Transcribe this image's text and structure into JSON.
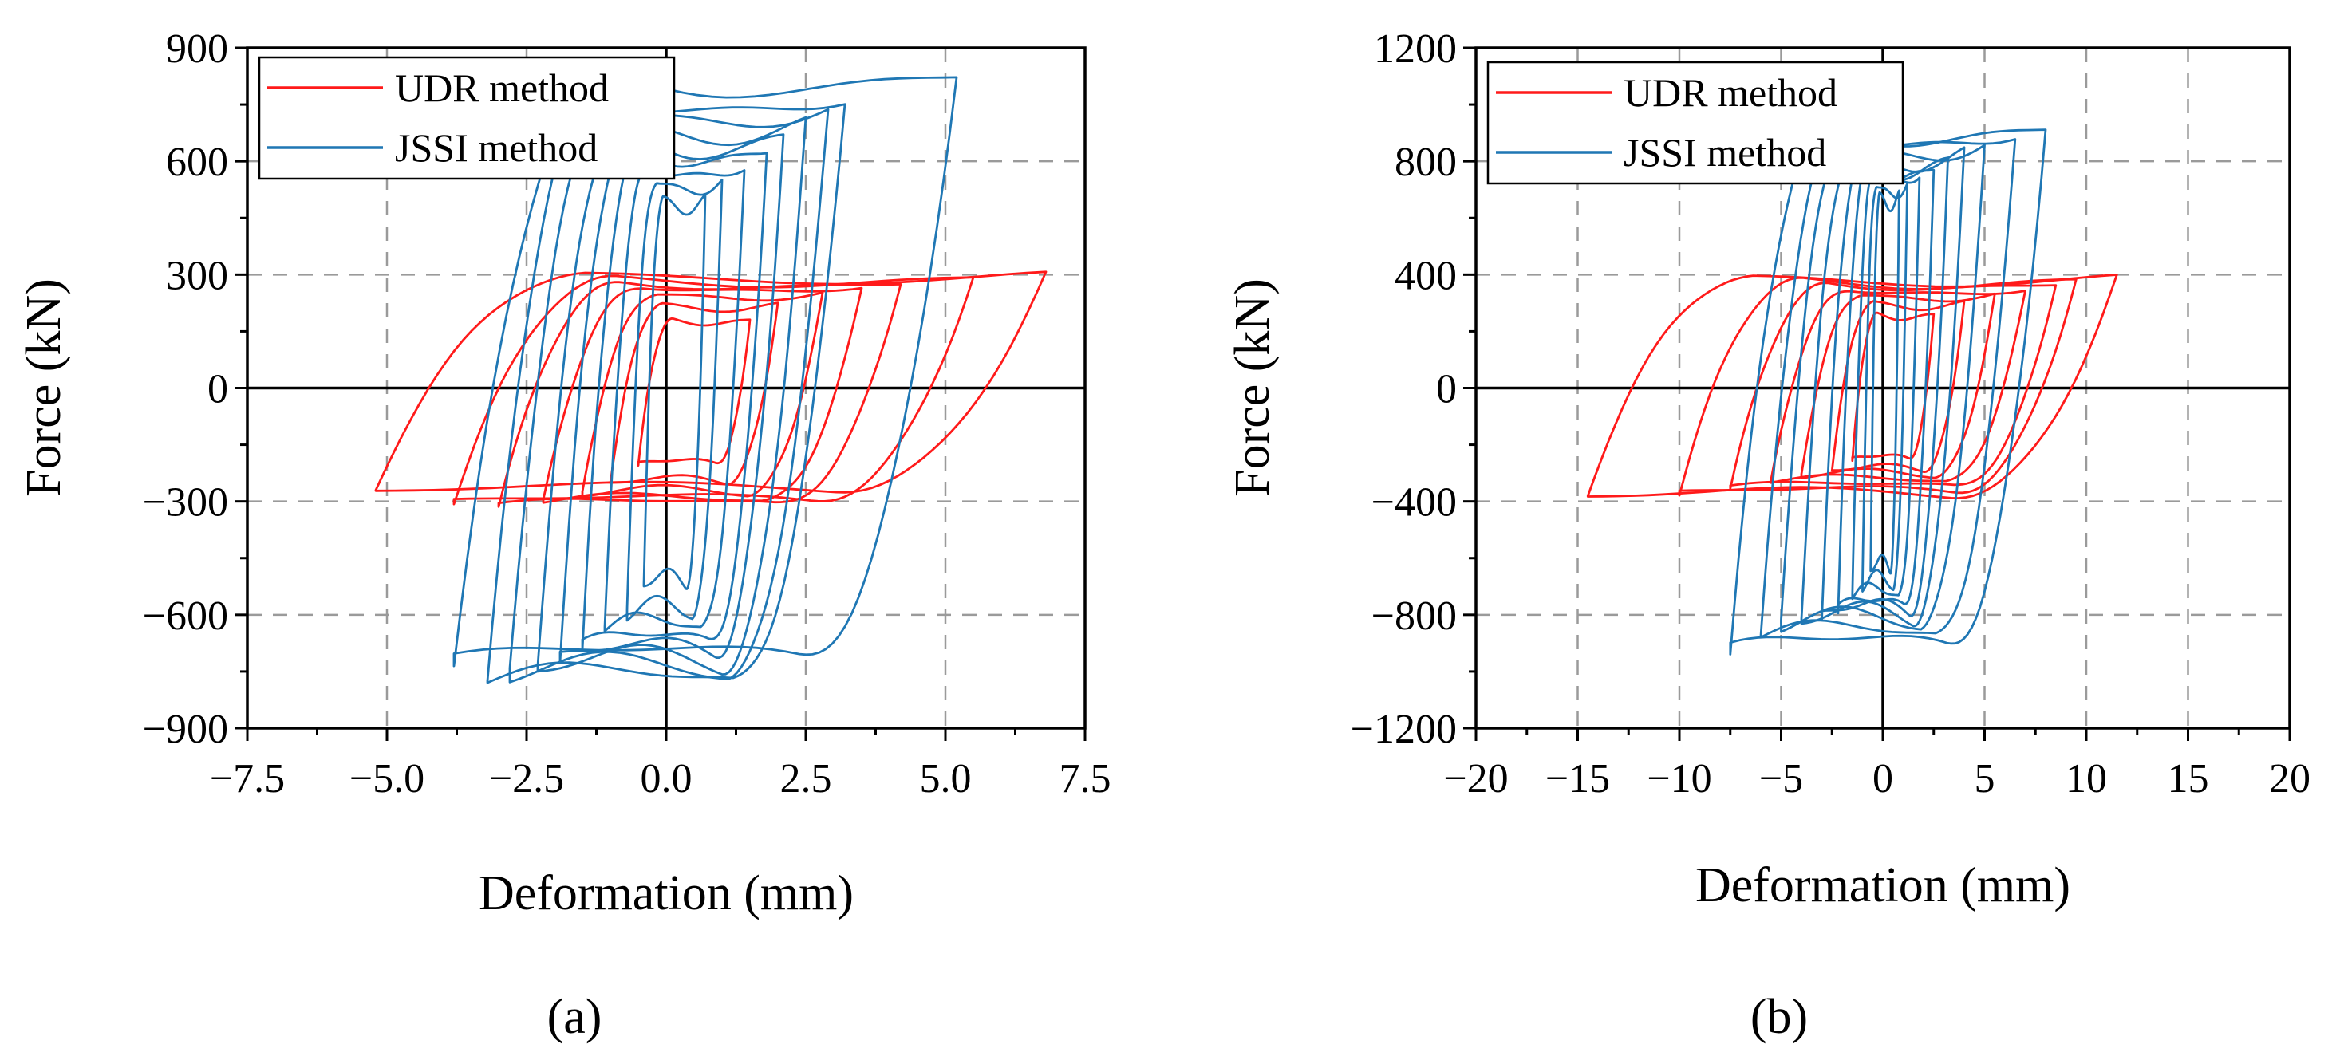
{
  "colors": {
    "udr": "#ff1a1a",
    "jssi": "#1f77b4"
  },
  "chart_data": [
    {
      "type": "line",
      "panel": "(a)",
      "xlabel": "Deformation (mm)",
      "ylabel": "Force (kN)",
      "xlim": [
        -7.5,
        7.5
      ],
      "ylim": [
        -900,
        900
      ],
      "xticks": [
        -7.5,
        -5.0,
        -2.5,
        0.0,
        2.5,
        5.0,
        7.5
      ],
      "xtick_labels": [
        "−7.5",
        "−5.0",
        "−2.5",
        "0.0",
        "2.5",
        "5.0",
        "7.5"
      ],
      "yticks": [
        -900,
        -600,
        -300,
        0,
        300,
        600,
        900
      ],
      "ytick_labels": [
        "−900",
        "−600",
        "−300",
        "0",
        "300",
        "600",
        "900"
      ],
      "grid": true,
      "legend_position": "top-left",
      "series": [
        {
          "name": "UDR method",
          "color_key": "udr",
          "loops": [
            {
              "dmin": -5.2,
              "dmax": 6.8,
              "fmin": -270,
              "fmax": 300,
              "dc": 0.6
            },
            {
              "dmin": -3.8,
              "dmax": 5.5,
              "fmin": -300,
              "fmax": 290,
              "dc": 0.8
            },
            {
              "dmin": -3.0,
              "dmax": 4.2,
              "fmin": -310,
              "fmax": 280,
              "dc": 0.6
            },
            {
              "dmin": -2.2,
              "dmax": 3.5,
              "fmin": -300,
              "fmax": 270,
              "dc": 0.6
            },
            {
              "dmin": -1.5,
              "dmax": 2.8,
              "fmin": -280,
              "fmax": 250,
              "dc": 0.6
            },
            {
              "dmin": -1.0,
              "dmax": 2.0,
              "fmin": -250,
              "fmax": 220,
              "dc": 0.5
            },
            {
              "dmin": -0.5,
              "dmax": 1.5,
              "fmin": -200,
              "fmax": 180,
              "dc": 0.5
            }
          ]
        },
        {
          "name": "JSSI method",
          "color_key": "jssi",
          "loops": [
            {
              "dmin": -3.8,
              "dmax": 5.2,
              "fmin": -720,
              "fmax": 830,
              "dc": 0.7
            },
            {
              "dmin": -3.2,
              "dmax": 3.2,
              "fmin": -780,
              "fmax": 770,
              "dc": 0.0
            },
            {
              "dmin": -2.8,
              "dmax": 2.9,
              "fmin": -760,
              "fmax": 740,
              "dc": 0.0
            },
            {
              "dmin": -2.3,
              "dmax": 2.5,
              "fmin": -740,
              "fmax": 700,
              "dc": 0.1
            },
            {
              "dmin": -1.9,
              "dmax": 2.1,
              "fmin": -710,
              "fmax": 660,
              "dc": 0.1
            },
            {
              "dmin": -1.5,
              "dmax": 1.8,
              "fmin": -680,
              "fmax": 630,
              "dc": 0.15
            },
            {
              "dmin": -1.1,
              "dmax": 1.4,
              "fmin": -640,
              "fmax": 590,
              "dc": 0.15
            },
            {
              "dmin": -0.7,
              "dmax": 1.0,
              "fmin": -600,
              "fmax": 550,
              "dc": 0.15
            },
            {
              "dmin": -0.4,
              "dmax": 0.7,
              "fmin": -520,
              "fmax": 500,
              "dc": 0.15
            }
          ]
        }
      ]
    },
    {
      "type": "line",
      "panel": "(b)",
      "xlabel": "Deformation (mm)",
      "ylabel": "Force (kN)",
      "xlim": [
        -20,
        20
      ],
      "ylim": [
        -1200,
        1200
      ],
      "xticks": [
        -20,
        -15,
        -10,
        -5,
        0,
        5,
        10,
        15,
        20
      ],
      "xtick_labels": [
        "−20",
        "−15",
        "−10",
        "−5",
        "0",
        "5",
        "10",
        "15",
        "20"
      ],
      "yticks": [
        -1200,
        -800,
        -400,
        0,
        400,
        800,
        1200
      ],
      "ytick_labels": [
        "−1200",
        "−800",
        "−400",
        "0",
        "400",
        "800",
        "1200"
      ],
      "grid": true,
      "legend_position": "top-left",
      "series": [
        {
          "name": "UDR method",
          "color_key": "udr",
          "loops": [
            {
              "dmin": -14.5,
              "dmax": 11.5,
              "fmin": -380,
              "fmax": 390,
              "dc": -1.5
            },
            {
              "dmin": -10.0,
              "dmax": 9.5,
              "fmin": -370,
              "fmax": 380,
              "dc": -0.3
            },
            {
              "dmin": -7.5,
              "dmax": 8.5,
              "fmin": -350,
              "fmax": 370,
              "dc": 0.5
            },
            {
              "dmin": -5.5,
              "dmax": 7.0,
              "fmin": -330,
              "fmax": 350,
              "dc": 0.7
            },
            {
              "dmin": -4.0,
              "dmax": 5.5,
              "fmin": -310,
              "fmax": 330,
              "dc": 0.8
            },
            {
              "dmin": -2.5,
              "dmax": 4.0,
              "fmin": -290,
              "fmax": 300,
              "dc": 0.8
            },
            {
              "dmin": -1.5,
              "dmax": 2.5,
              "fmin": -250,
              "fmax": 260,
              "dc": 0.5
            }
          ]
        },
        {
          "name": "JSSI method",
          "color_key": "jssi",
          "loops": [
            {
              "dmin": -7.5,
              "dmax": 8.0,
              "fmin": -920,
              "fmax": 920,
              "dc": 0.3
            },
            {
              "dmin": -6.0,
              "dmax": 6.5,
              "fmin": -880,
              "fmax": 900,
              "dc": 0.3
            },
            {
              "dmin": -5.0,
              "dmax": 5.0,
              "fmin": -840,
              "fmax": 860,
              "dc": 0.0
            },
            {
              "dmin": -4.0,
              "dmax": 4.0,
              "fmin": -820,
              "fmax": 830,
              "dc": 0.0
            },
            {
              "dmin": -3.0,
              "dmax": 3.2,
              "fmin": -800,
              "fmax": 800,
              "dc": 0.0
            },
            {
              "dmin": -2.2,
              "dmax": 2.5,
              "fmin": -780,
              "fmax": 780,
              "dc": 0.0
            },
            {
              "dmin": -1.5,
              "dmax": 1.8,
              "fmin": -740,
              "fmax": 760,
              "dc": 0.0
            },
            {
              "dmin": -1.0,
              "dmax": 1.2,
              "fmin": -700,
              "fmax": 720,
              "dc": 0.0
            },
            {
              "dmin": -0.6,
              "dmax": 0.8,
              "fmin": -640,
              "fmax": 680,
              "dc": 0.0
            }
          ]
        }
      ]
    }
  ]
}
